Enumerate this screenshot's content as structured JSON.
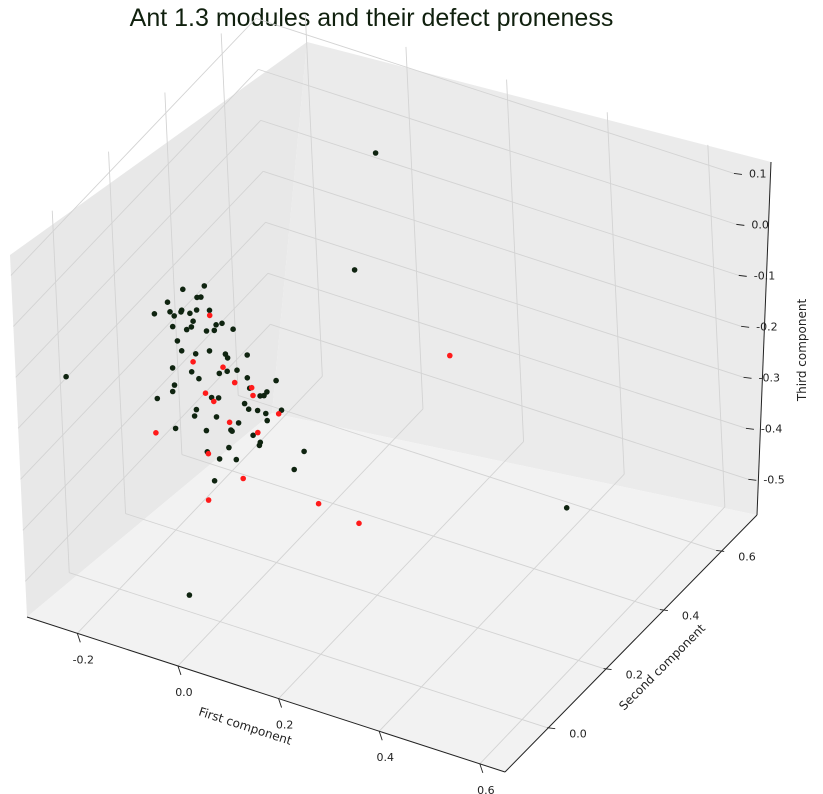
{
  "chart_data": {
    "type": "scatter",
    "title": "Ant 1.3 modules and their defect proneness",
    "xlabel": "First component",
    "ylabel": "Second component",
    "zlabel": "Third component",
    "xticks": [
      "-0.2",
      "0.0",
      "0.2",
      "0.4",
      "0.6"
    ],
    "yticks": [
      "0.0",
      "0.2",
      "0.4",
      "0.6"
    ],
    "zticks": [
      "0.1",
      "0.0",
      "-0.1",
      "-0.2",
      "-0.3",
      "-0.4",
      "-0.5"
    ],
    "xlim": [
      -0.3,
      0.65
    ],
    "ylim": [
      -0.15,
      0.72
    ],
    "zlim": [
      -0.57,
      0.14
    ],
    "grid": true,
    "colors": {
      "non_defective": "#0f2410",
      "defective": "#ff1a1a"
    },
    "series": [
      {
        "key": "non_defective",
        "points": [
          [
            0.03,
            0.55,
            0.04
          ],
          [
            0.09,
            0.36,
            -0.06
          ],
          [
            0.4,
            0.52,
            -0.52
          ],
          [
            -0.24,
            -0.08,
            -0.12
          ],
          [
            0.0,
            -0.1,
            -0.46
          ],
          [
            -0.05,
            -0.09,
            0.07
          ],
          [
            0.09,
            0.04,
            -0.17
          ],
          [
            0.03,
            0.11,
            -0.21
          ],
          [
            0.14,
            0.04,
            -0.25
          ],
          [
            0.09,
            0.16,
            -0.3
          ],
          [
            -0.04,
            -0.04,
            0.04
          ],
          [
            -0.03,
            0.02,
            0.02
          ],
          [
            -0.06,
            -0.02,
            0.03
          ],
          [
            -0.05,
            0.01,
            0.06
          ],
          [
            -0.02,
            -0.05,
            0.06
          ],
          [
            -0.04,
            0.04,
            0.03
          ],
          [
            0.0,
            0.0,
            0.0
          ],
          [
            -0.01,
            0.03,
            0.02
          ],
          [
            -0.05,
            -0.03,
            0.01
          ],
          [
            -0.03,
            0.05,
            0.05
          ],
          [
            -0.06,
            0.02,
            0.01
          ],
          [
            -0.02,
            -0.02,
            0.04
          ],
          [
            -0.07,
            -0.01,
            0.04
          ],
          [
            -0.04,
            0.0,
            -0.01
          ],
          [
            -0.03,
            -0.05,
            0.0
          ],
          [
            -0.01,
            0.05,
            -0.02
          ],
          [
            -0.05,
            0.04,
            -0.02
          ],
          [
            0.02,
            0.02,
            0.01
          ],
          [
            -0.02,
            0.06,
            -0.04
          ],
          [
            -0.04,
            -0.02,
            -0.04
          ],
          [
            -0.06,
            0.05,
            -0.04
          ],
          [
            0.01,
            -0.01,
            -0.03
          ],
          [
            0.03,
            0.04,
            -0.01
          ],
          [
            -0.01,
            -0.04,
            -0.06
          ],
          [
            -0.05,
            0.07,
            0.01
          ],
          [
            -0.03,
            0.01,
            -0.06
          ],
          [
            0.0,
            0.06,
            -0.08
          ],
          [
            0.04,
            0.0,
            -0.04
          ],
          [
            0.02,
            0.03,
            -0.09
          ],
          [
            -0.02,
            0.0,
            -0.1
          ],
          [
            0.05,
            0.05,
            -0.06
          ],
          [
            -0.04,
            -0.05,
            -0.09
          ],
          [
            0.03,
            -0.02,
            -0.11
          ],
          [
            0.06,
            0.03,
            -0.09
          ],
          [
            0.01,
            0.08,
            -0.12
          ],
          [
            -0.01,
            -0.03,
            -0.14
          ],
          [
            -0.06,
            -0.02,
            -0.08
          ],
          [
            0.04,
            0.07,
            -0.14
          ],
          [
            0.07,
            0.0,
            -0.12
          ],
          [
            0.02,
            -0.05,
            -0.16
          ],
          [
            -0.02,
            0.04,
            -0.16
          ],
          [
            0.05,
            0.01,
            -0.17
          ],
          [
            0.08,
            0.05,
            -0.13
          ],
          [
            -0.07,
            -0.06,
            -0.12
          ],
          [
            0.0,
            0.02,
            -0.18
          ],
          [
            0.06,
            -0.03,
            -0.16
          ],
          [
            0.03,
            0.08,
            -0.19
          ],
          [
            0.09,
            0.02,
            -0.11
          ],
          [
            -0.03,
            -0.07,
            -0.16
          ],
          [
            0.04,
            -0.01,
            -0.21
          ],
          [
            0.1,
            0.06,
            -0.1
          ],
          [
            0.01,
            0.05,
            -0.22
          ],
          [
            0.07,
            0.07,
            -0.18
          ],
          [
            0.11,
            0.01,
            -0.09
          ],
          [
            0.05,
            -0.06,
            -0.2
          ],
          [
            0.08,
            0.03,
            -0.21
          ],
          [
            -0.01,
            0.0,
            -0.24
          ],
          [
            0.12,
            0.04,
            -0.14
          ],
          [
            0.03,
            0.03,
            -0.26
          ],
          [
            0.06,
            0.06,
            -0.24
          ],
          [
            -0.05,
            0.03,
            -0.2
          ],
          [
            -0.08,
            0.01,
            -0.15
          ],
          [
            0.09,
            -0.01,
            -0.17
          ],
          [
            0.02,
            -0.03,
            -0.27
          ],
          [
            -0.02,
            0.07,
            -0.13
          ]
        ]
      },
      {
        "key": "defective",
        "points": [
          [
            0.25,
            0.4,
            -0.2
          ],
          [
            0.18,
            0.05,
            -0.31
          ],
          [
            0.2,
            0.15,
            -0.4
          ],
          [
            -0.1,
            -0.02,
            -0.22
          ],
          [
            0.0,
            -0.02,
            -0.32
          ],
          [
            0.06,
            0.0,
            -0.27
          ],
          [
            0.02,
            0.03,
            -0.19
          ],
          [
            0.04,
            0.08,
            -0.16
          ],
          [
            0.07,
            0.04,
            -0.2
          ],
          [
            -0.03,
            0.0,
            -0.07
          ],
          [
            0.0,
            0.05,
            -0.1
          ],
          [
            0.02,
            -0.02,
            -0.12
          ],
          [
            -0.01,
            0.03,
            0.01
          ],
          [
            0.05,
            0.06,
            -0.13
          ],
          [
            0.09,
            0.08,
            -0.18
          ],
          [
            0.01,
            -0.03,
            -0.22
          ],
          [
            0.04,
            0.02,
            -0.1
          ],
          [
            -0.02,
            0.02,
            -0.14
          ]
        ]
      }
    ]
  }
}
